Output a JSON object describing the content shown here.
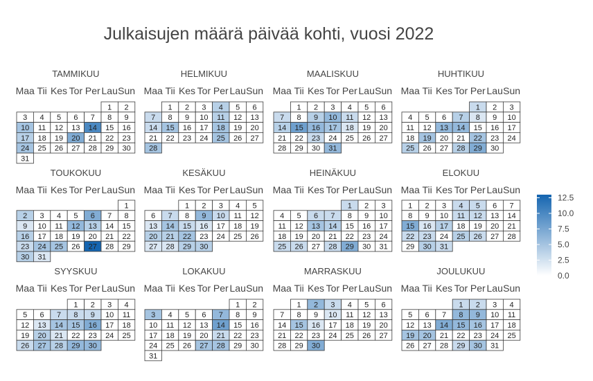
{
  "chart_data": {
    "type": "heatmap",
    "title": "Julkaisujen määrä päivää kohti, vuosi 2022",
    "year": 2022,
    "weekday_labels": [
      "Maa",
      "Tii",
      "Kes",
      "Tor",
      "Per",
      "Lau",
      "Sun"
    ],
    "week_start": "monday",
    "legend": {
      "ticks": [
        "12.5",
        "10.0",
        "7.5",
        "5.0",
        "2.5",
        "0.0"
      ],
      "min": 0,
      "max": 13
    },
    "color_low": "#ffffff",
    "color_high": "#1565b0",
    "months": [
      {
        "name": "TAMMIKUU",
        "values": [
          0,
          0,
          0,
          0,
          0,
          0,
          0,
          0,
          0,
          5,
          0,
          0,
          0,
          10,
          0,
          0,
          4,
          0,
          0,
          7,
          0,
          0,
          0,
          5,
          0,
          0,
          0,
          0,
          0,
          0,
          0
        ]
      },
      {
        "name": "HELMIKUU",
        "values": [
          0,
          0,
          0,
          4,
          0,
          0,
          3,
          0,
          0,
          0,
          4,
          0,
          0,
          3,
          5,
          0,
          0,
          5,
          0,
          0,
          0,
          0,
          0,
          0,
          5,
          0,
          0,
          5
        ]
      },
      {
        "name": "MAALISKUU",
        "values": [
          0,
          0,
          0,
          0,
          0,
          0,
          3,
          0,
          4,
          6,
          3,
          0,
          0,
          4,
          8,
          6,
          5,
          2,
          0,
          0,
          0,
          0,
          3,
          0,
          0,
          0,
          0,
          0,
          0,
          0,
          6
        ]
      },
      {
        "name": "HUHTIKUU",
        "values": [
          3,
          0,
          0,
          0,
          0,
          0,
          4,
          2,
          0,
          0,
          0,
          0,
          6,
          6,
          0,
          0,
          0,
          0,
          5,
          0,
          0,
          5,
          0,
          0,
          4,
          0,
          0,
          4,
          7,
          0
        ]
      },
      {
        "name": "TOUKOKUU",
        "values": [
          0,
          4,
          0,
          0,
          0,
          7,
          0,
          0,
          2,
          0,
          0,
          6,
          4,
          0,
          0,
          4,
          0,
          0,
          0,
          0,
          0,
          0,
          3,
          5,
          5,
          0,
          13,
          0,
          0,
          4,
          2
        ]
      },
      {
        "name": "KESÄKUU",
        "values": [
          0,
          0,
          0,
          0,
          0,
          0,
          3,
          0,
          6,
          3,
          0,
          0,
          2,
          5,
          3,
          2,
          0,
          0,
          0,
          4,
          4,
          5,
          0,
          0,
          0,
          0,
          2,
          2,
          4,
          4
        ]
      },
      {
        "name": "HEINÄKUU",
        "values": [
          3,
          0,
          0,
          0,
          0,
          3,
          3,
          0,
          0,
          0,
          0,
          0,
          5,
          4,
          0,
          0,
          0,
          0,
          0,
          0,
          0,
          0,
          0,
          0,
          3,
          3,
          0,
          3,
          7,
          0,
          0
        ]
      },
      {
        "name": "ELOKUU",
        "values": [
          0,
          0,
          0,
          3,
          3,
          0,
          0,
          0,
          0,
          0,
          3,
          3,
          0,
          0,
          7,
          2,
          4,
          0,
          0,
          0,
          0,
          3,
          3,
          0,
          4,
          3,
          0,
          0,
          0,
          4,
          3
        ]
      },
      {
        "name": "SYYSKUU",
        "values": [
          0,
          0,
          0,
          0,
          0,
          0,
          3,
          3,
          3,
          0,
          0,
          0,
          2,
          5,
          5,
          7,
          0,
          0,
          0,
          4,
          2,
          0,
          0,
          0,
          0,
          3,
          5,
          4,
          6,
          6
        ]
      },
      {
        "name": "LOKAKUU",
        "values": [
          0,
          0,
          5,
          0,
          0,
          0,
          6,
          0,
          0,
          0,
          0,
          0,
          0,
          8,
          0,
          0,
          0,
          0,
          0,
          0,
          3,
          0,
          0,
          0,
          0,
          0,
          5,
          5,
          0,
          0,
          0
        ]
      },
      {
        "name": "MARRASKUU",
        "values": [
          0,
          6,
          3,
          0,
          0,
          0,
          0,
          0,
          0,
          2,
          0,
          0,
          0,
          0,
          5,
          2,
          0,
          0,
          0,
          0,
          0,
          0,
          0,
          0,
          0,
          0,
          0,
          0,
          0,
          7
        ]
      },
      {
        "name": "JOULUKUU",
        "values": [
          3,
          3,
          0,
          0,
          0,
          0,
          0,
          6,
          6,
          0,
          0,
          0,
          0,
          7,
          6,
          5,
          0,
          0,
          5,
          5,
          0,
          0,
          0,
          0,
          0,
          0,
          0,
          0,
          3,
          5,
          0
        ]
      }
    ]
  }
}
